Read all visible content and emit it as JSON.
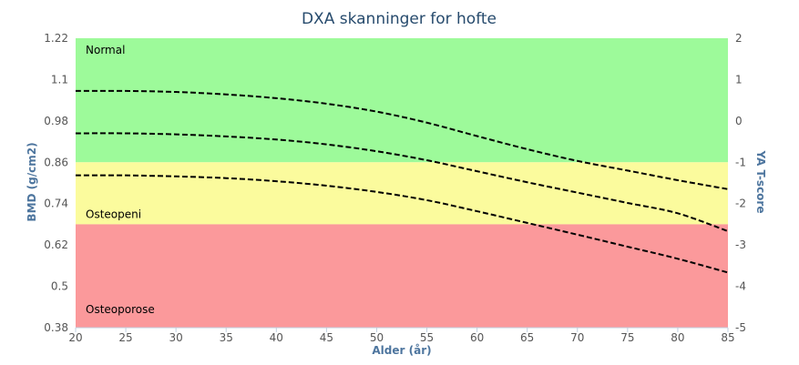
{
  "chart_data": {
    "type": "line",
    "title": "DXA skanninger for hofte",
    "xlabel": "Alder (år)",
    "ylabel": "BMD (g/cm2)",
    "y2label": "YA T-score",
    "x_ticks": [
      "20",
      "25",
      "30",
      "35",
      "40",
      "45",
      "50",
      "55",
      "60",
      "65",
      "70",
      "75",
      "80",
      "85"
    ],
    "y_ticks": [
      "0.38",
      "0.5",
      "0.62",
      "0.74",
      "0.86",
      "0.98",
      "1.1",
      "1.22"
    ],
    "y2_ticks": [
      "-5",
      "-4",
      "-3",
      "-2",
      "-1",
      "0",
      "1",
      "2"
    ],
    "xlim": [
      20,
      85
    ],
    "ylim": [
      0.38,
      1.22
    ],
    "y2lim": [
      -5,
      2
    ],
    "grid": false,
    "zones": [
      {
        "label": "Normal",
        "from": 0.86,
        "to": 1.22,
        "color": "#9dfa9a"
      },
      {
        "label": "Osteopeni",
        "from": 0.68,
        "to": 0.86,
        "color": "#fbfb9d"
      },
      {
        "label": "Osteoporose",
        "from": 0.38,
        "to": 0.68,
        "color": "#fb999b"
      }
    ],
    "series": [
      {
        "x": [
          20,
          25,
          30,
          35,
          40,
          45,
          50,
          55,
          60,
          65,
          70,
          75,
          80,
          85
        ],
        "y": [
          1.067,
          1.067,
          1.064,
          1.057,
          1.046,
          1.03,
          1.007,
          0.975,
          0.936,
          0.898,
          0.864,
          0.836,
          0.808,
          0.782
        ]
      },
      {
        "x": [
          20,
          25,
          30,
          35,
          40,
          45,
          50,
          55,
          60,
          65,
          70,
          75,
          80,
          85
        ],
        "y": [
          0.944,
          0.944,
          0.941,
          0.935,
          0.926,
          0.912,
          0.892,
          0.866,
          0.834,
          0.802,
          0.772,
          0.742,
          0.712,
          0.66
        ]
      },
      {
        "x": [
          20,
          25,
          30,
          35,
          40,
          45,
          50,
          55,
          60,
          65,
          70,
          75,
          80,
          85
        ],
        "y": [
          0.822,
          0.822,
          0.819,
          0.814,
          0.805,
          0.792,
          0.774,
          0.75,
          0.718,
          0.684,
          0.65,
          0.615,
          0.58,
          0.54
        ]
      }
    ]
  }
}
